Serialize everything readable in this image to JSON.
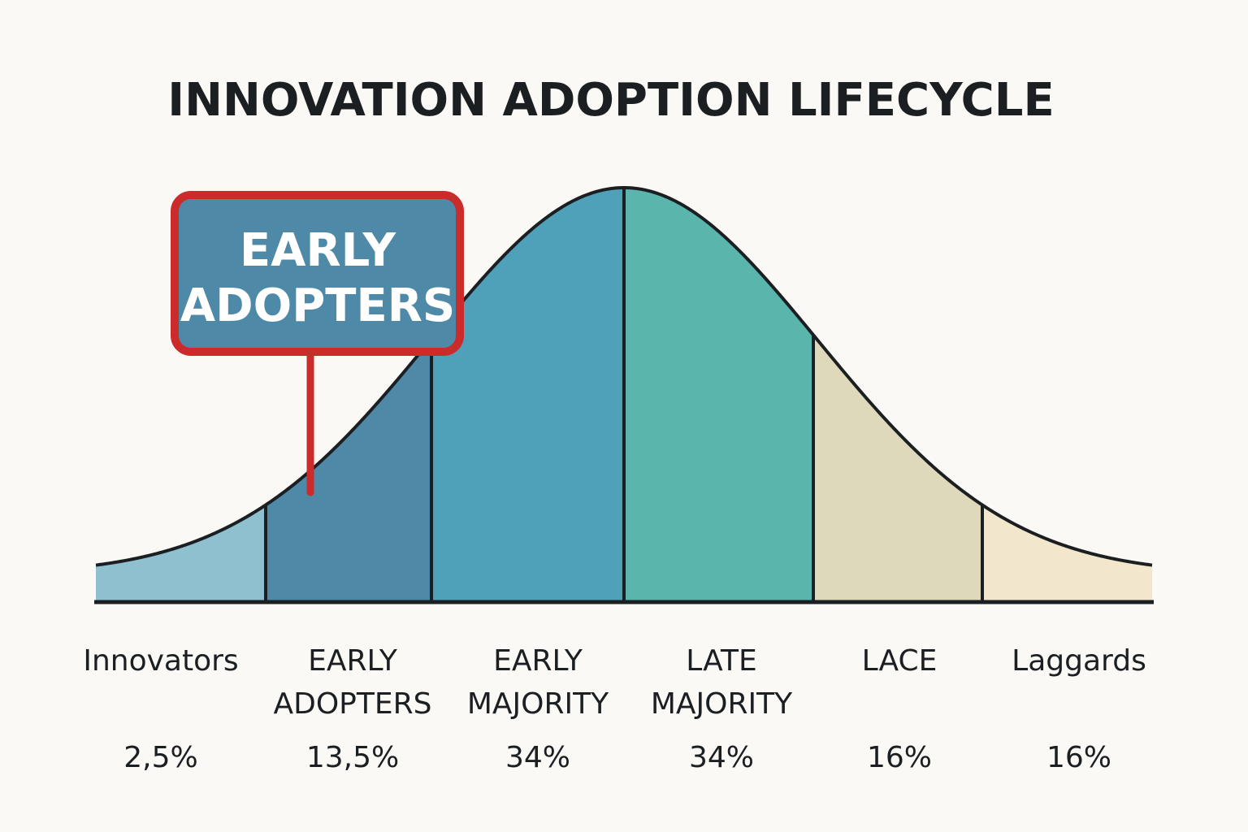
{
  "chart_data": {
    "type": "area",
    "title": "INNOVATION ADOPTION LIFECYCLE",
    "segments": [
      {
        "label_lines": [
          "Innovators"
        ],
        "percent": "2,5%",
        "value": 2.5,
        "color": "#8ec0d0"
      },
      {
        "label_lines": [
          "EARLY",
          "ADOPTERS"
        ],
        "percent": "13,5%",
        "value": 13.5,
        "color": "#4e89a8"
      },
      {
        "label_lines": [
          "EARLY",
          "MAJORITY"
        ],
        "percent": "34%",
        "value": 34,
        "color": "#4ea1b8"
      },
      {
        "label_lines": [
          "LATE",
          "MAJORITY"
        ],
        "percent": "34%",
        "value": 34,
        "color": "#5ab6ad"
      },
      {
        "label_lines": [
          "LACE"
        ],
        "percent": "16%",
        "value": 16,
        "color": "#ded9bb"
      },
      {
        "label_lines": [
          "Laggards"
        ],
        "percent": "16%",
        "value": 16,
        "color": "#f2e7cc"
      }
    ],
    "callout": {
      "lines": [
        "EARLY",
        "ADOPTERS"
      ],
      "fill": "#4e8aa8",
      "border": "#cc2b2b",
      "points_to": "EARLY ADOPTERS"
    },
    "curve_color": "#1c1f22",
    "background": "#fbf9f6"
  }
}
